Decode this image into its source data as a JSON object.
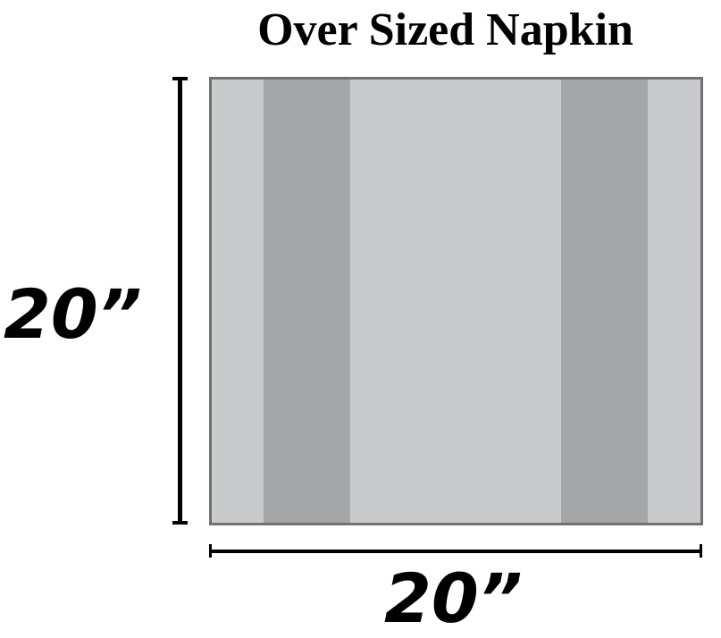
{
  "title": "Over Sized Napkin",
  "height_label": "20”",
  "width_label": "20”",
  "colors": {
    "light_stripe": "#c8cacb",
    "dark_stripe": "#a5a6a8",
    "border": "#707172"
  }
}
